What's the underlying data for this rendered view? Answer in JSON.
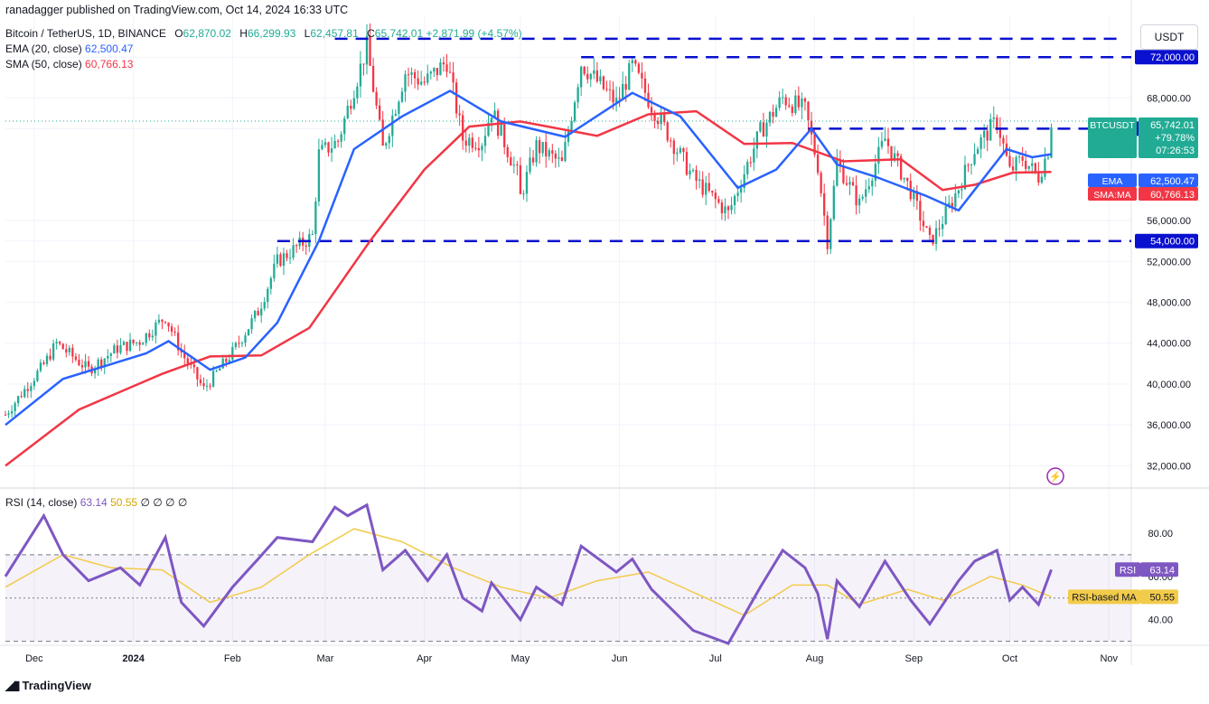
{
  "header": {
    "publisher_line": "ranadagger published on TradingView.com, Oct 14, 2024 16:33 UTC",
    "symbol_line": "Bitcoin / TetherUS, 1D, BINANCE",
    "ohlc": {
      "o_label": "O",
      "o": "62,870.02",
      "h_label": "H",
      "h": "66,299.93",
      "l_label": "L",
      "l": "62,457.81",
      "c_label": "C",
      "c": "65,742.01",
      "change": "+2,871.99 (+4.57%)"
    },
    "ema_label": "EMA (20, close)",
    "ema_value": "62,500.47",
    "sma_label": "SMA (50, close)",
    "sma_value": "60,766.13",
    "rsi_label": "RSI (14, close)",
    "rsi_value": "63.14",
    "rsi_ma_value": "50.55",
    "rsi_rest": "∅ ∅ ∅ ∅",
    "currency": "USDT"
  },
  "footer": {
    "brand": "TradingView"
  },
  "colors": {
    "up": "#22ab94",
    "down": "#f23645",
    "ema": "#2962ff",
    "sma": "#f23645",
    "rsi": "#7e57c2",
    "rsi_ma": "#f2cb4a",
    "level": "#0a10cf",
    "grid": "#f0f3fa"
  },
  "chart_data": [
    {
      "type": "candlestick",
      "title": "Bitcoin / TetherUS, 1D, BINANCE",
      "ylim": [
        30000,
        76000
      ],
      "x_range": [
        "2023-11-22",
        "2024-11-08"
      ],
      "y_ticks": [
        {
          "v": 32000,
          "label": "32,000.00"
        },
        {
          "v": 36000,
          "label": "36,000.00"
        },
        {
          "v": 40000,
          "label": "40,000.00"
        },
        {
          "v": 44000,
          "label": "44,000.00"
        },
        {
          "v": 48000,
          "label": "48,000.00"
        },
        {
          "v": 52000,
          "label": "52,000.00"
        },
        {
          "v": 56000,
          "label": "56,000.00"
        },
        {
          "v": 68000,
          "label": "68,000.00"
        }
      ],
      "x_ticks": [
        {
          "date": "2023-12-01",
          "label": "Dec"
        },
        {
          "date": "2024-01-01",
          "label": "2024"
        },
        {
          "date": "2024-02-01",
          "label": "Feb"
        },
        {
          "date": "2024-03-01",
          "label": "Mar"
        },
        {
          "date": "2024-04-01",
          "label": "Apr"
        },
        {
          "date": "2024-05-01",
          "label": "May"
        },
        {
          "date": "2024-06-01",
          "label": "Jun"
        },
        {
          "date": "2024-07-01",
          "label": "Jul"
        },
        {
          "date": "2024-08-01",
          "label": "Aug"
        },
        {
          "date": "2024-09-01",
          "label": "Sep"
        },
        {
          "date": "2024-10-01",
          "label": "Oct"
        },
        {
          "date": "2024-11-01",
          "label": "Nov"
        }
      ],
      "close_path": [
        [
          "2023-11-22",
          37000
        ],
        [
          "2023-12-04",
          41900
        ],
        [
          "2023-12-08",
          44000
        ],
        [
          "2023-12-18",
          41400
        ],
        [
          "2023-12-27",
          43500
        ],
        [
          "2024-01-03",
          44200
        ],
        [
          "2024-01-11",
          46600
        ],
        [
          "2024-01-16",
          43100
        ],
        [
          "2024-01-23",
          39500
        ],
        [
          "2024-02-01",
          43100
        ],
        [
          "2024-02-09",
          47100
        ],
        [
          "2024-02-15",
          52000
        ],
        [
          "2024-02-26",
          54500
        ],
        [
          "2024-02-28",
          62500
        ],
        [
          "2024-03-05",
          63800
        ],
        [
          "2024-03-10",
          69000
        ],
        [
          "2024-03-14",
          73000
        ],
        [
          "2024-03-19",
          63000
        ],
        [
          "2024-03-26",
          70500
        ],
        [
          "2024-04-01",
          69500
        ],
        [
          "2024-04-08",
          71600
        ],
        [
          "2024-04-13",
          64000
        ],
        [
          "2024-04-19",
          63800
        ],
        [
          "2024-04-22",
          66800
        ],
        [
          "2024-04-30",
          60600
        ],
        [
          "2024-05-01",
          58300
        ],
        [
          "2024-05-06",
          63300
        ],
        [
          "2024-05-14",
          61500
        ],
        [
          "2024-05-20",
          71400
        ],
        [
          "2024-05-31",
          67500
        ],
        [
          "2024-06-05",
          71100
        ],
        [
          "2024-06-11",
          67300
        ],
        [
          "2024-06-24",
          60200
        ],
        [
          "2024-07-05",
          56700
        ],
        [
          "2024-07-15",
          64700
        ],
        [
          "2024-07-22",
          68000
        ],
        [
          "2024-07-29",
          66800
        ],
        [
          "2024-08-02",
          61400
        ],
        [
          "2024-08-05",
          54000
        ],
        [
          "2024-08-08",
          61700
        ],
        [
          "2024-08-15",
          57600
        ],
        [
          "2024-08-23",
          64000
        ],
        [
          "2024-08-31",
          58900
        ],
        [
          "2024-09-06",
          53900
        ],
        [
          "2024-09-08",
          54800
        ],
        [
          "2024-09-15",
          59200
        ],
        [
          "2024-09-20",
          63000
        ],
        [
          "2024-09-27",
          65800
        ],
        [
          "2024-10-01",
          60800
        ],
        [
          "2024-10-05",
          62100
        ],
        [
          "2024-10-10",
          60300
        ],
        [
          "2024-10-13",
          62900
        ],
        [
          "2024-10-14",
          65742
        ]
      ],
      "series": [
        {
          "name": "EMA (20, close)",
          "points": [
            [
              "2023-11-22",
              36000
            ],
            [
              "2023-12-10",
              40500
            ],
            [
              "2024-01-05",
              43000
            ],
            [
              "2024-01-12",
              44200
            ],
            [
              "2024-01-25",
              41400
            ],
            [
              "2024-02-05",
              42600
            ],
            [
              "2024-02-15",
              46000
            ],
            [
              "2024-02-28",
              54000
            ],
            [
              "2024-03-10",
              63000
            ],
            [
              "2024-03-25",
              66200
            ],
            [
              "2024-04-09",
              68700
            ],
            [
              "2024-04-25",
              65700
            ],
            [
              "2024-05-15",
              64200
            ],
            [
              "2024-06-05",
              68500
            ],
            [
              "2024-06-20",
              66200
            ],
            [
              "2024-07-08",
              59200
            ],
            [
              "2024-07-20",
              61000
            ],
            [
              "2024-07-31",
              65000
            ],
            [
              "2024-08-08",
              61500
            ],
            [
              "2024-08-20",
              60300
            ],
            [
              "2024-09-05",
              58400
            ],
            [
              "2024-09-15",
              57000
            ],
            [
              "2024-09-30",
              63000
            ],
            [
              "2024-10-08",
              62200
            ],
            [
              "2024-10-14",
              62500
            ]
          ]
        },
        {
          "name": "SMA (50, close)",
          "points": [
            [
              "2023-11-22",
              32000
            ],
            [
              "2023-12-15",
              37500
            ],
            [
              "2024-01-10",
              41000
            ],
            [
              "2024-01-25",
              42700
            ],
            [
              "2024-02-10",
              42800
            ],
            [
              "2024-02-25",
              45500
            ],
            [
              "2024-03-15",
              54000
            ],
            [
              "2024-04-01",
              61000
            ],
            [
              "2024-04-15",
              65200
            ],
            [
              "2024-05-01",
              65700
            ],
            [
              "2024-05-25",
              64300
            ],
            [
              "2024-06-10",
              66400
            ],
            [
              "2024-06-25",
              66700
            ],
            [
              "2024-07-10",
              63500
            ],
            [
              "2024-07-25",
              63600
            ],
            [
              "2024-08-10",
              61800
            ],
            [
              "2024-08-28",
              62000
            ],
            [
              "2024-09-10",
              59000
            ],
            [
              "2024-09-20",
              59500
            ],
            [
              "2024-10-02",
              60700
            ],
            [
              "2024-10-14",
              60766
            ]
          ]
        }
      ],
      "levels": [
        {
          "value": 72000,
          "label": "72,000.00",
          "from": "2024-05-20"
        },
        {
          "value": 65000,
          "label": "65,000.00",
          "from": "2024-07-30"
        },
        {
          "value": 54000,
          "label": "54,000.00",
          "from": "2024-02-15"
        }
      ],
      "extra_levels": [
        {
          "value": 73800,
          "from": "2024-03-04"
        }
      ],
      "price_tags": [
        {
          "label": "BTCUSDT",
          "lines": [
            "65,742.01",
            "+79.78%",
            "07:26:53"
          ],
          "value": 65742
        },
        {
          "label": "EMA",
          "lines": [
            "62,500.47"
          ],
          "value": 62500.47
        },
        {
          "label": "SMA:MA",
          "lines": [
            "60,766.13"
          ],
          "value": 60766.13
        }
      ]
    },
    {
      "type": "line",
      "title": "RSI (14, close)",
      "ylim": [
        29,
        100
      ],
      "band": [
        30,
        70
      ],
      "y_ticks": [
        {
          "v": 40,
          "label": "40.00"
        },
        {
          "v": 60,
          "label": "60.00"
        },
        {
          "v": 80,
          "label": "80.00"
        }
      ],
      "series": [
        {
          "name": "RSI",
          "points": [
            [
              "2023-11-22",
              60
            ],
            [
              "2023-12-04",
              88
            ],
            [
              "2023-12-10",
              70
            ],
            [
              "2023-12-18",
              58
            ],
            [
              "2023-12-28",
              64
            ],
            [
              "2024-01-03",
              56
            ],
            [
              "2024-01-11",
              78
            ],
            [
              "2024-01-16",
              48
            ],
            [
              "2024-01-23",
              37
            ],
            [
              "2024-02-01",
              55
            ],
            [
              "2024-02-09",
              68
            ],
            [
              "2024-02-15",
              78
            ],
            [
              "2024-02-26",
              76
            ],
            [
              "2024-03-04",
              92
            ],
            [
              "2024-03-08",
              88
            ],
            [
              "2024-03-14",
              93
            ],
            [
              "2024-03-19",
              63
            ],
            [
              "2024-03-26",
              72
            ],
            [
              "2024-04-02",
              58
            ],
            [
              "2024-04-08",
              70
            ],
            [
              "2024-04-13",
              50
            ],
            [
              "2024-04-19",
              44
            ],
            [
              "2024-04-22",
              57
            ],
            [
              "2024-05-01",
              40
            ],
            [
              "2024-05-06",
              55
            ],
            [
              "2024-05-14",
              47
            ],
            [
              "2024-05-20",
              74
            ],
            [
              "2024-05-31",
              62
            ],
            [
              "2024-06-05",
              68
            ],
            [
              "2024-06-11",
              54
            ],
            [
              "2024-06-24",
              35
            ],
            [
              "2024-07-05",
              29
            ],
            [
              "2024-07-15",
              55
            ],
            [
              "2024-07-22",
              72
            ],
            [
              "2024-07-29",
              64
            ],
            [
              "2024-08-02",
              52
            ],
            [
              "2024-08-05",
              31
            ],
            [
              "2024-08-08",
              58
            ],
            [
              "2024-08-15",
              46
            ],
            [
              "2024-08-23",
              67
            ],
            [
              "2024-08-31",
              49
            ],
            [
              "2024-09-06",
              38
            ],
            [
              "2024-09-15",
              58
            ],
            [
              "2024-09-20",
              67
            ],
            [
              "2024-09-27",
              72
            ],
            [
              "2024-10-01",
              49
            ],
            [
              "2024-10-05",
              55
            ],
            [
              "2024-10-10",
              47
            ],
            [
              "2024-10-14",
              63.14
            ]
          ]
        },
        {
          "name": "RSI-based MA",
          "points": [
            [
              "2023-11-22",
              55
            ],
            [
              "2023-12-10",
              70
            ],
            [
              "2023-12-25",
              64
            ],
            [
              "2024-01-10",
              63
            ],
            [
              "2024-01-25",
              48
            ],
            [
              "2024-02-10",
              55
            ],
            [
              "2024-02-25",
              70
            ],
            [
              "2024-03-10",
              82
            ],
            [
              "2024-03-25",
              76
            ],
            [
              "2024-04-10",
              64
            ],
            [
              "2024-04-25",
              55
            ],
            [
              "2024-05-10",
              50
            ],
            [
              "2024-05-25",
              58
            ],
            [
              "2024-06-10",
              62
            ],
            [
              "2024-06-25",
              52
            ],
            [
              "2024-07-10",
              42
            ],
            [
              "2024-07-25",
              56
            ],
            [
              "2024-08-05",
              56
            ],
            [
              "2024-08-15",
              47
            ],
            [
              "2024-08-30",
              54
            ],
            [
              "2024-09-10",
              49
            ],
            [
              "2024-09-25",
              60
            ],
            [
              "2024-10-05",
              56
            ],
            [
              "2024-10-14",
              50.55
            ]
          ]
        }
      ],
      "price_tags": [
        {
          "label": "RSI",
          "lines": [
            "63.14"
          ],
          "value": 63.14
        },
        {
          "label": "RSI-based MA",
          "lines": [
            "50.55"
          ],
          "value": 50.55
        }
      ]
    }
  ]
}
